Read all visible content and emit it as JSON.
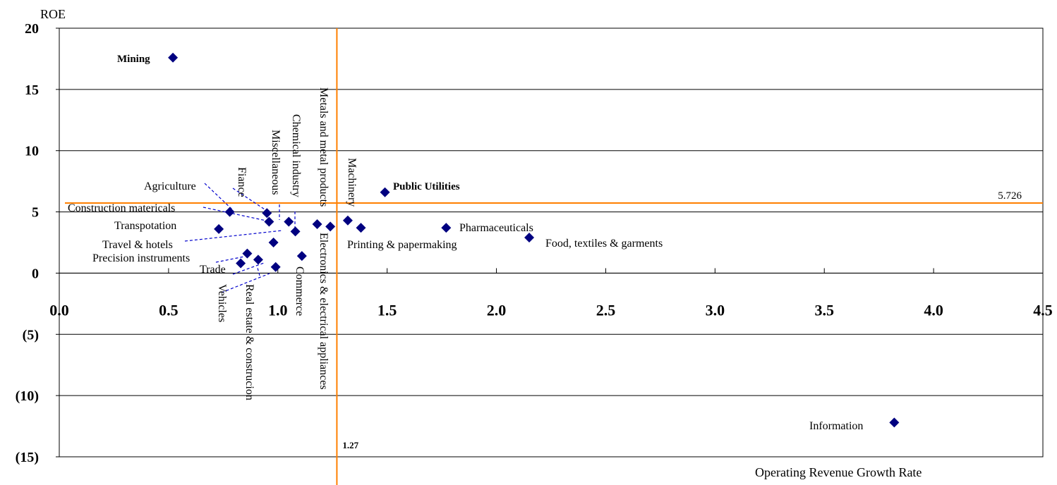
{
  "chart_data": {
    "type": "scatter",
    "ylabel": "ROE",
    "xlabel": "Operating Revenue Growth Rate",
    "xlim": [
      0,
      4.5
    ],
    "ylim": [
      -15,
      20
    ],
    "x_ticks": [
      "0.0",
      "0.5",
      "1.0",
      "1.5",
      "2.0",
      "2.5",
      "3.0",
      "3.5",
      "4.0",
      "4.5"
    ],
    "y_ticks": [
      "20",
      "15",
      "10",
      "5",
      "0",
      "(5)",
      "(10)",
      "(15)"
    ],
    "grid": "horizontal",
    "marker_color": "#000080",
    "reference_color": "#ff7f00",
    "reference_lines": [
      {
        "axis": "x",
        "value": 1.27,
        "label": "1.27"
      },
      {
        "axis": "y",
        "value": 5.726,
        "label": "5.726"
      }
    ],
    "points": [
      {
        "name": "Mining",
        "x": 0.52,
        "y": 17.6
      },
      {
        "name": "Public Utilities",
        "x": 1.49,
        "y": 6.6
      },
      {
        "name": "Agriculture",
        "x": 0.78,
        "y": 5.0
      },
      {
        "name": "Fiance",
        "x": 0.95,
        "y": 4.9
      },
      {
        "name": "Construction matericals",
        "x": 0.96,
        "y": 4.2
      },
      {
        "name": "Miscellaneous",
        "x": 1.05,
        "y": 4.2
      },
      {
        "name": "Chemical industry",
        "x": 1.08,
        "y": 3.4
      },
      {
        "name": "Transpotation",
        "x": 0.73,
        "y": 3.6
      },
      {
        "name": "Metals and metal products",
        "x": 1.18,
        "y": 4.0
      },
      {
        "name": "Electronics & electrical appliances",
        "x": 1.24,
        "y": 3.8
      },
      {
        "name": "Machinery",
        "x": 1.32,
        "y": 4.3
      },
      {
        "name": "Printing & papermaking",
        "x": 1.38,
        "y": 3.7
      },
      {
        "name": "Pharmaceuticals",
        "x": 1.77,
        "y": 3.7
      },
      {
        "name": "Food, textiles & garments",
        "x": 2.15,
        "y": 2.9
      },
      {
        "name": "Travel & hotels",
        "x": 0.98,
        "y": 2.5
      },
      {
        "name": "Commerce",
        "x": 1.11,
        "y": 1.4
      },
      {
        "name": "Precision instruments",
        "x": 0.86,
        "y": 1.6
      },
      {
        "name": "Real estate & construcion",
        "x": 0.91,
        "y": 1.1
      },
      {
        "name": "Trade",
        "x": 0.83,
        "y": 0.8
      },
      {
        "name": "Vehicles",
        "x": 0.99,
        "y": 0.5
      },
      {
        "name": "Information",
        "x": 3.82,
        "y": -12.2
      }
    ]
  }
}
